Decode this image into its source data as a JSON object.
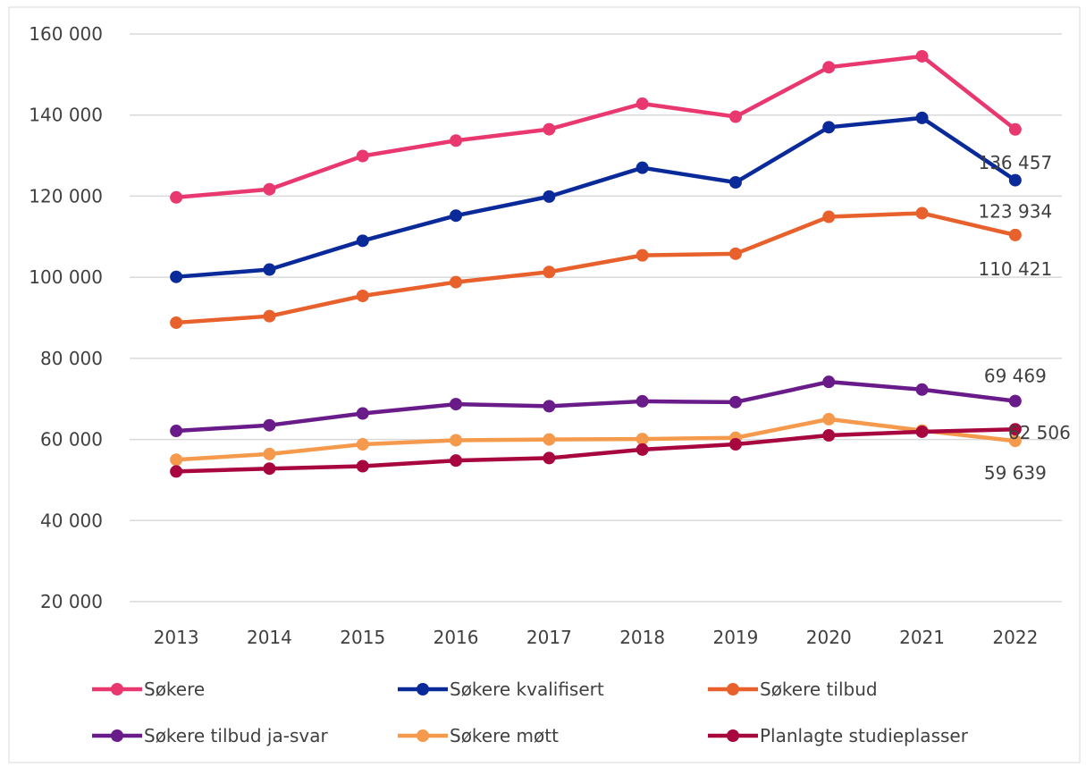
{
  "chart_data": {
    "type": "line",
    "title": "",
    "xlabel": "",
    "ylabel": "",
    "categories": [
      "2013",
      "2014",
      "2015",
      "2016",
      "2017",
      "2018",
      "2019",
      "2020",
      "2021",
      "2022"
    ],
    "ylim": [
      20000,
      160000
    ],
    "yticks": [
      20000,
      40000,
      60000,
      80000,
      100000,
      120000,
      140000,
      160000
    ],
    "ytick_labels": [
      "20 000",
      "40 000",
      "60 000",
      "80 000",
      "100 000",
      "120 000",
      "140 000",
      "160 000"
    ],
    "grid": true,
    "legend_position": "bottom",
    "series": [
      {
        "name": "Søkere",
        "color": "#E8386F",
        "values": [
          119700,
          121700,
          129900,
          133700,
          136500,
          142800,
          139600,
          151800,
          154500,
          136457
        ],
        "end_label": "136 457"
      },
      {
        "name": "Søkere kvalifisert",
        "color": "#0A2A9A",
        "values": [
          100100,
          101900,
          109000,
          115200,
          119900,
          127000,
          123400,
          137000,
          139300,
          123934
        ],
        "end_label": "123 934"
      },
      {
        "name": "Søkere tilbud",
        "color": "#E8602C",
        "values": [
          88800,
          90400,
          95400,
          98800,
          101300,
          105400,
          105800,
          114900,
          115800,
          110421
        ],
        "end_label": "110 421"
      },
      {
        "name": "Søkere tilbud ja-svar",
        "color": "#6A1B8A",
        "values": [
          62100,
          63500,
          66400,
          68700,
          68200,
          69400,
          69200,
          74200,
          72300,
          69469
        ],
        "end_label": "69 469"
      },
      {
        "name": "Søkere møtt",
        "color": "#F59A4C",
        "values": [
          55000,
          56400,
          58800,
          59800,
          60000,
          60100,
          60400,
          65000,
          62200,
          59639
        ],
        "end_label": "59 639"
      },
      {
        "name": "Planlagte studieplasser",
        "color": "#A8063E",
        "values": [
          52100,
          52800,
          53400,
          54800,
          55400,
          57500,
          58800,
          61000,
          61900,
          62506
        ],
        "end_label": "62 506"
      }
    ]
  }
}
